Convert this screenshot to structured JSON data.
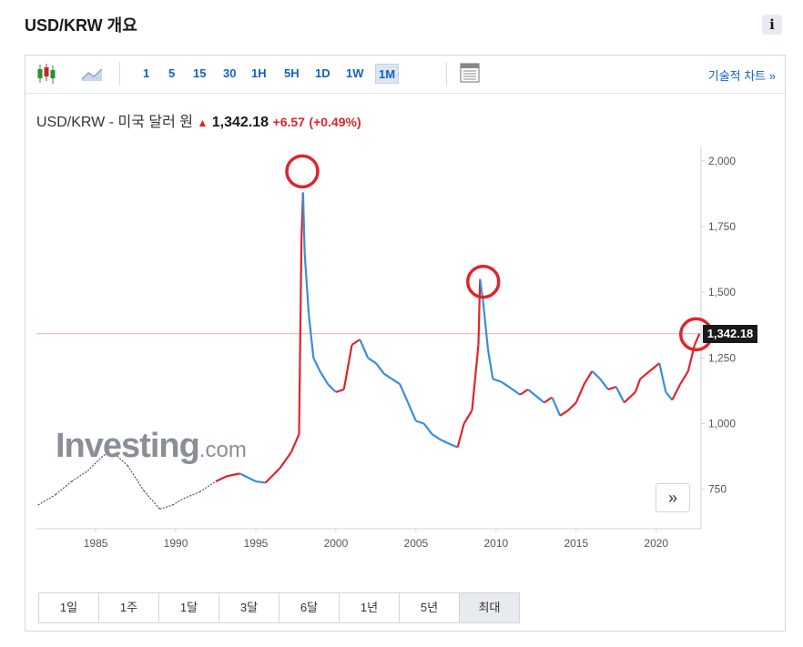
{
  "page": {
    "title": "USD/KRW 개요",
    "info_icon": "i"
  },
  "toolbar": {
    "intervals": [
      "1",
      "5",
      "15",
      "30",
      "1H",
      "5H",
      "1D",
      "1W",
      "1M"
    ],
    "active_interval": "1M",
    "tech_chart_link": "기술적 차트 »"
  },
  "quote": {
    "name": "USD/KRW - 미국 달러 원",
    "price": "1,342.18",
    "change": "+6.57",
    "change_pct": "(+0.49%)",
    "direction": "up"
  },
  "watermark": {
    "brand": "Investing",
    "suffix": ".com"
  },
  "price_tag": "1,342.18",
  "scroll_button": "»",
  "range": {
    "buttons": [
      "1일",
      "1주",
      "1달",
      "3달",
      "6달",
      "1년",
      "5년",
      "최대"
    ],
    "active": "최대"
  },
  "colors": {
    "up": "#e0242b",
    "down": "#3a8ddc",
    "accent": "#1262c6",
    "circle": "#e0242b"
  },
  "chart_data": {
    "type": "line",
    "title": "USD/KRW - 미국 달러 원",
    "x_ticks": [
      "1985",
      "1990",
      "1995",
      "2000",
      "2005",
      "2010",
      "2015",
      "2020"
    ],
    "y_ticks": [
      "2,000",
      "1,750",
      "1,500",
      "1,250",
      "1,000",
      "750"
    ],
    "xlim": [
      1981.3,
      2022.8
    ],
    "ylim": [
      600,
      2020
    ],
    "reference_line": 1342.18,
    "series": [
      {
        "x": [
          1981.4,
          1982.5,
          1983.5,
          1984.5,
          1985.5,
          1986.2,
          1987,
          1988,
          1989,
          1989.8,
          1990.5,
          1991.5,
          1992.5,
          1993.2,
          1994,
          1995,
          1995.6,
          1996.5,
          1997.2,
          1997.7,
          1997.85,
          1997.95,
          1998.05,
          1998.3,
          1998.6,
          1999,
          1999.5,
          2000,
          2000.5,
          2001,
          2001.5,
          2002,
          2002.5,
          2003,
          2003.5,
          2004,
          2004.5,
          2005,
          2005.5,
          2006,
          2006.5,
          2007,
          2007.6,
          2008,
          2008.5,
          2008.9,
          2009.0,
          2009.2,
          2009.5,
          2009.8,
          2010.3,
          2010.8,
          2011.5,
          2012,
          2013,
          2013.5,
          2014,
          2014.5,
          2015,
          2015.5,
          2016,
          2016.5,
          2017,
          2017.5,
          2018,
          2018.7,
          2019,
          2019.6,
          2020,
          2020.2,
          2020.6,
          2021,
          2021.5,
          2022,
          2022.4,
          2022.7
        ],
        "y": [
          690,
          730,
          780,
          820,
          880,
          885,
          840,
          745,
          675,
          690,
          715,
          740,
          780,
          800,
          810,
          780,
          775,
          830,
          890,
          960,
          1700,
          1880,
          1650,
          1420,
          1250,
          1200,
          1150,
          1120,
          1130,
          1300,
          1320,
          1250,
          1230,
          1190,
          1170,
          1150,
          1080,
          1010,
          1000,
          960,
          940,
          925,
          910,
          1000,
          1050,
          1300,
          1550,
          1460,
          1280,
          1170,
          1160,
          1140,
          1110,
          1130,
          1080,
          1100,
          1030,
          1050,
          1080,
          1150,
          1200,
          1170,
          1130,
          1140,
          1080,
          1120,
          1170,
          1200,
          1220,
          1230,
          1120,
          1090,
          1150,
          1200,
          1300,
          1342
        ]
      }
    ],
    "annotations": [
      {
        "type": "circle",
        "x": 1997.9,
        "y": 1960
      },
      {
        "type": "circle",
        "x": 2009.2,
        "y": 1540
      },
      {
        "type": "circle",
        "x": 2022.5,
        "y": 1340
      }
    ]
  }
}
